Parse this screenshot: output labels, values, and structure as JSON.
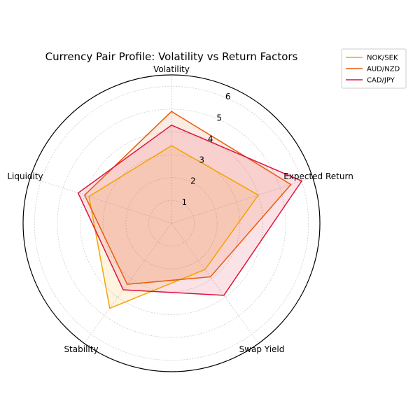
{
  "chart_data": {
    "type": "radar",
    "title": "Currency Pair Profile: Volatility vs Return Factors",
    "axes": [
      "Volatility",
      "Expected Return",
      "Swap Yield",
      "Stability",
      "Liquidity"
    ],
    "rticks": [
      1,
      2,
      3,
      4,
      5,
      6
    ],
    "rticks_labels": [
      "1",
      "2",
      "3",
      "4",
      "5",
      "6"
    ],
    "rlim": [
      0,
      6.5
    ],
    "grid": true,
    "legend_position": "top-right",
    "series": [
      {
        "name": "NOK/SEK",
        "values": [
          3.4,
          4.0,
          2.5,
          4.6,
          3.8
        ],
        "color": "#f5a300"
      },
      {
        "name": "AUD/NZD",
        "values": [
          4.9,
          5.5,
          2.9,
          3.3,
          4.0
        ],
        "color": "#e85c0d"
      },
      {
        "name": "CAD/JPY",
        "values": [
          4.3,
          6.0,
          3.9,
          3.6,
          4.3
        ],
        "color": "#dc143c"
      }
    ]
  }
}
